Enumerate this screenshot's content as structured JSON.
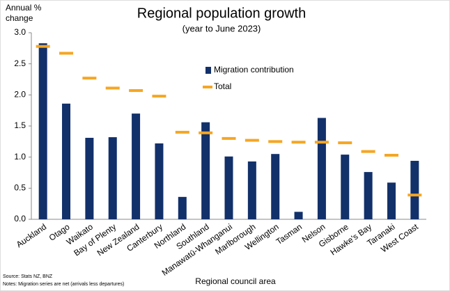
{
  "chart_data": {
    "type": "bar_marker",
    "title": "Regional population growth",
    "subtitle": "(year to June 2023)",
    "y_label": [
      "Annual %",
      "change"
    ],
    "x_label": "Regional council area",
    "source": "Source: Stats NZ, BNZ",
    "notes": "Notes: Migration series are net (arrivals less departures)",
    "categories": [
      "Auckland",
      "Otago",
      "Waikato",
      "Bay of Plenty",
      "New Zealand",
      "Canterbury",
      "Northland",
      "Southland",
      "Manawatū-Whanganui",
      "Marlborough",
      "Wellington",
      "Tasman",
      "Nelson",
      "Gisborne",
      "Hawke's Bay",
      "Taranaki",
      "West Coast"
    ],
    "series": [
      {
        "name": "Migration contribution",
        "color": "#12306a",
        "kind": "bar",
        "values": [
          2.83,
          1.86,
          1.31,
          1.32,
          1.7,
          1.22,
          0.36,
          1.56,
          1.01,
          0.93,
          1.05,
          0.12,
          1.63,
          1.04,
          0.76,
          0.59,
          0.94
        ]
      },
      {
        "name": "Total",
        "color": "#f5a623",
        "kind": "marker",
        "values": [
          2.78,
          2.67,
          2.27,
          2.11,
          2.07,
          1.98,
          1.4,
          1.39,
          1.3,
          1.27,
          1.25,
          1.24,
          1.24,
          1.23,
          1.09,
          1.03,
          0.39
        ]
      }
    ],
    "ylim": [
      0,
      3
    ],
    "yticks": [
      {
        "value": 0,
        "label": "0.0"
      },
      0.5,
      {
        "value": 1,
        "label": "1.0"
      },
      1.5,
      {
        "value": 2,
        "label": "2.0"
      },
      2.5,
      {
        "value": 3,
        "label": "3.0"
      }
    ],
    "grid": false,
    "legend": "upper-center"
  }
}
